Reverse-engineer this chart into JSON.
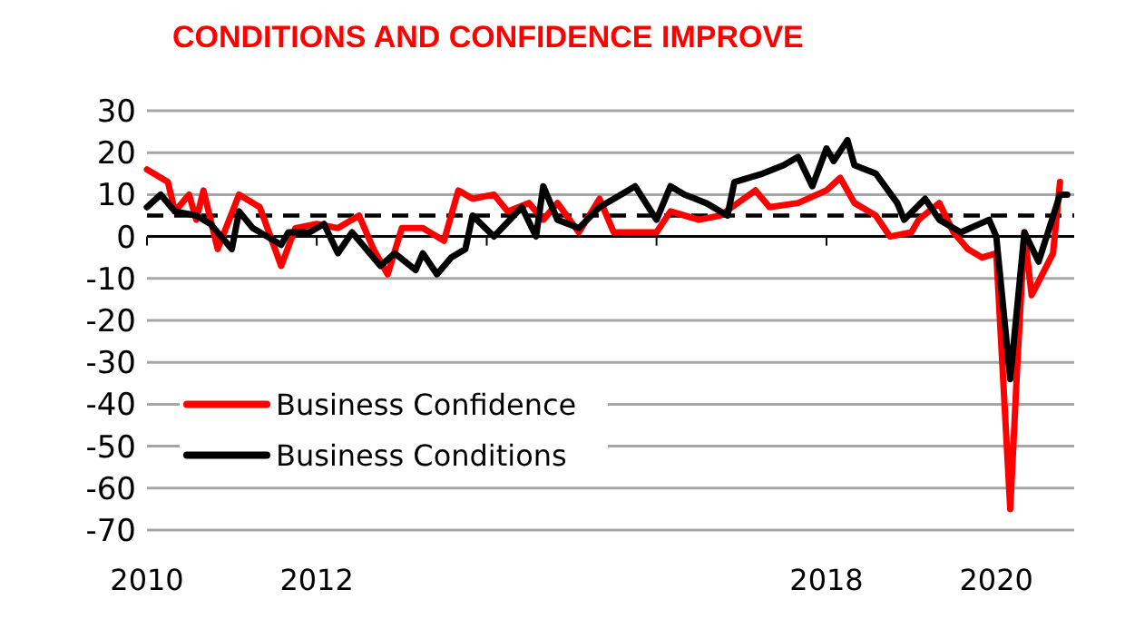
{
  "chart_data": {
    "type": "line",
    "title": "CONDITIONS AND CONFIDENCE IMPROVE",
    "xlim": [
      "2010-01",
      "2020-12"
    ],
    "xticks": [
      "2010",
      "2012",
      {
        "value": "2014",
        "label": null
      },
      {
        "value": "2016",
        "label": null
      },
      "2018",
      "2020"
    ],
    "ylim": [
      -70,
      30
    ],
    "yticks": [
      30,
      20,
      10,
      0,
      -10,
      -20,
      -30,
      -40,
      -50,
      -60,
      -70
    ],
    "grid": "y",
    "legend": "bottom left",
    "line_style": "solid",
    "marker": "none",
    "ref_lines": [
      {
        "axis": "y",
        "value": 5,
        "line_style": "dashed",
        "color": "#000000"
      }
    ],
    "series": [
      {
        "name": "Business Confidence",
        "color": "#ff0000",
        "x": [
          "2010-01",
          "2010-04",
          "2010-05",
          "2010-07",
          "2010-08",
          "2010-09",
          "2010-11",
          "2011-02",
          "2011-05",
          "2011-08",
          "2011-10",
          "2012-01",
          "2012-04",
          "2012-07",
          "2012-09",
          "2012-11",
          "2013-01",
          "2013-04",
          "2013-07",
          "2013-09",
          "2013-11",
          "2014-02",
          "2014-04",
          "2014-07",
          "2014-09",
          "2014-11",
          "2015-02",
          "2015-05",
          "2015-07",
          "2016-01",
          "2016-03",
          "2016-07",
          "2016-10",
          "2017-03",
          "2017-05",
          "2017-09",
          "2018-01",
          "2018-03",
          "2018-05",
          "2018-08",
          "2018-10",
          "2019-01",
          "2019-02",
          "2019-05",
          "2019-07",
          "2019-09",
          "2019-11",
          "2020-01",
          "2020-03",
          "2020-04",
          "2020-05",
          "2020-06",
          "2020-09",
          "2020-10"
        ],
        "values": [
          16,
          13,
          6,
          10,
          4,
          11,
          -3,
          10,
          7,
          -7,
          2,
          3,
          2,
          5,
          -3,
          -9,
          2,
          2,
          -1,
          11,
          9,
          10,
          6,
          8,
          4,
          8,
          1,
          9,
          1,
          1,
          6,
          4,
          5,
          11,
          7,
          8,
          11,
          14,
          8,
          5,
          0,
          1,
          4,
          8,
          1,
          -3,
          -5,
          -4,
          -65,
          -30,
          1,
          -14,
          -4,
          13
        ]
      },
      {
        "name": "Business Conditions",
        "color": "#000000",
        "x": [
          "2010-01",
          "2010-03",
          "2010-05",
          "2010-08",
          "2010-10",
          "2011-01",
          "2011-02",
          "2011-04",
          "2011-08",
          "2011-09",
          "2011-12",
          "2012-02",
          "2012-04",
          "2012-06",
          "2012-10",
          "2012-12",
          "2013-03",
          "2013-04",
          "2013-06",
          "2013-08",
          "2013-10",
          "2013-11",
          "2014-02",
          "2014-06",
          "2014-08",
          "2014-09",
          "2014-11",
          "2015-02",
          "2015-05",
          "2015-08",
          "2015-10",
          "2016-01",
          "2016-03",
          "2016-05",
          "2016-08",
          "2016-11",
          "2016-12",
          "2017-04",
          "2017-07",
          "2017-09",
          "2017-11",
          "2018-01",
          "2018-02",
          "2018-04",
          "2018-05",
          "2018-08",
          "2018-11",
          "2018-12",
          "2019-03",
          "2019-05",
          "2019-08",
          "2019-12",
          "2020-01",
          "2020-03",
          "2020-05",
          "2020-07",
          "2020-10",
          "2020-11"
        ],
        "values": [
          7,
          10,
          6,
          5,
          3,
          -3,
          6,
          2,
          -2,
          1,
          1,
          3,
          -4,
          1,
          -7,
          -4,
          -8,
          -4,
          -9,
          -5,
          -3,
          5,
          0,
          7,
          0,
          12,
          4,
          2,
          7,
          10,
          12,
          4,
          12,
          10,
          8,
          5,
          13,
          15,
          17,
          19,
          12,
          21,
          18,
          23,
          17,
          15,
          8,
          4,
          9,
          4,
          1,
          4,
          0,
          -34,
          1,
          -6,
          10,
          10
        ]
      }
    ]
  }
}
